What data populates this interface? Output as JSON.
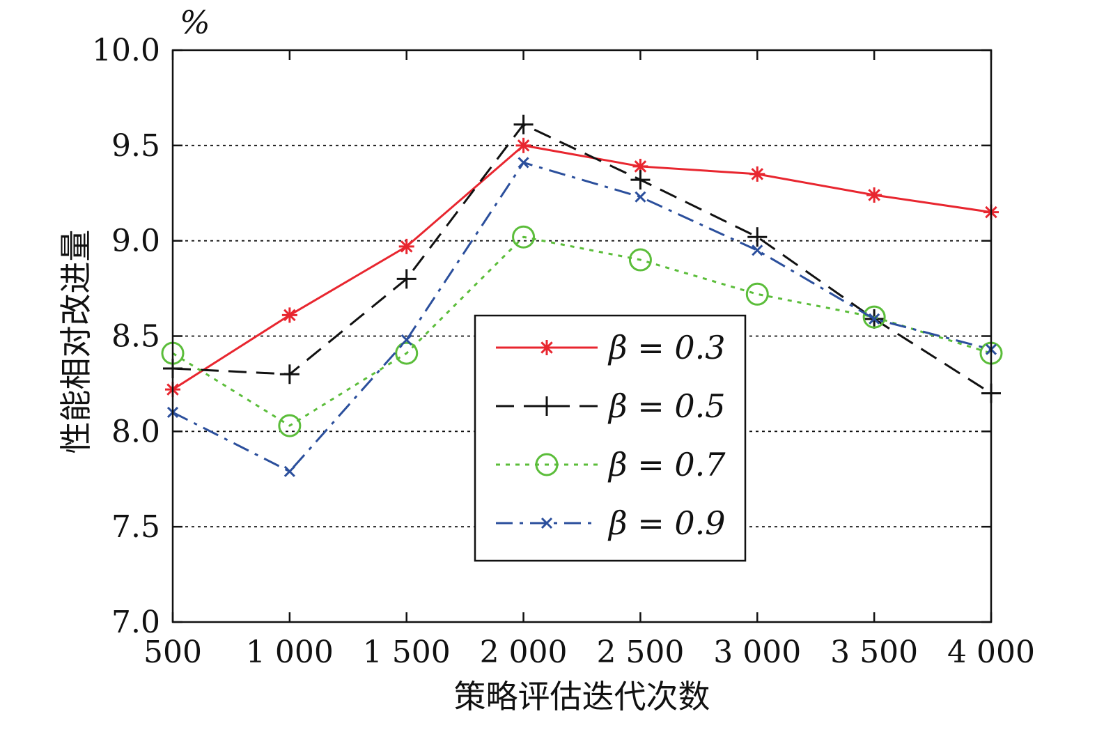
{
  "chart_data": {
    "type": "line",
    "title": "",
    "xlabel": "策略评估迭代次数",
    "ylabel": "性能相对改进量",
    "yunit": "%",
    "x": [
      500,
      1000,
      1500,
      2000,
      2500,
      3000,
      3500,
      4000
    ],
    "x_tick_labels": [
      "500",
      "1 000",
      "1 500",
      "2 000",
      "2 500",
      "3 000",
      "3 500",
      "4 000"
    ],
    "y_ticks": [
      7.0,
      7.5,
      8.0,
      8.5,
      9.0,
      9.5,
      10.0
    ],
    "y_tick_labels": [
      "7.0",
      "7.5",
      "8.0",
      "8.5",
      "9.0",
      "9.5",
      "10.0"
    ],
    "xlim": [
      500,
      4000
    ],
    "ylim": [
      7.0,
      10.0
    ],
    "grid": "horizontal dotted",
    "legend_position": "center",
    "series": [
      {
        "name": "β = 0.3",
        "values": [
          8.22,
          8.61,
          8.97,
          9.5,
          9.39,
          9.35,
          9.24,
          9.15
        ],
        "color": "#e8262f",
        "dash": "solid",
        "marker": "asterisk"
      },
      {
        "name": "β = 0.5",
        "values": [
          8.33,
          8.3,
          8.8,
          9.61,
          9.32,
          9.02,
          8.59,
          8.2
        ],
        "color": "#111111",
        "dash": "dashed",
        "marker": "plus"
      },
      {
        "name": "β = 0.7",
        "values": [
          8.41,
          8.03,
          8.41,
          9.02,
          8.9,
          8.72,
          8.6,
          8.41
        ],
        "color": "#5bbd3a",
        "dash": "dotted",
        "marker": "circle"
      },
      {
        "name": "β = 0.9",
        "values": [
          8.1,
          7.79,
          8.48,
          9.41,
          9.23,
          8.95,
          8.59,
          8.43
        ],
        "color": "#2b4f9c",
        "dash": "dashdot",
        "marker": "x"
      }
    ]
  }
}
